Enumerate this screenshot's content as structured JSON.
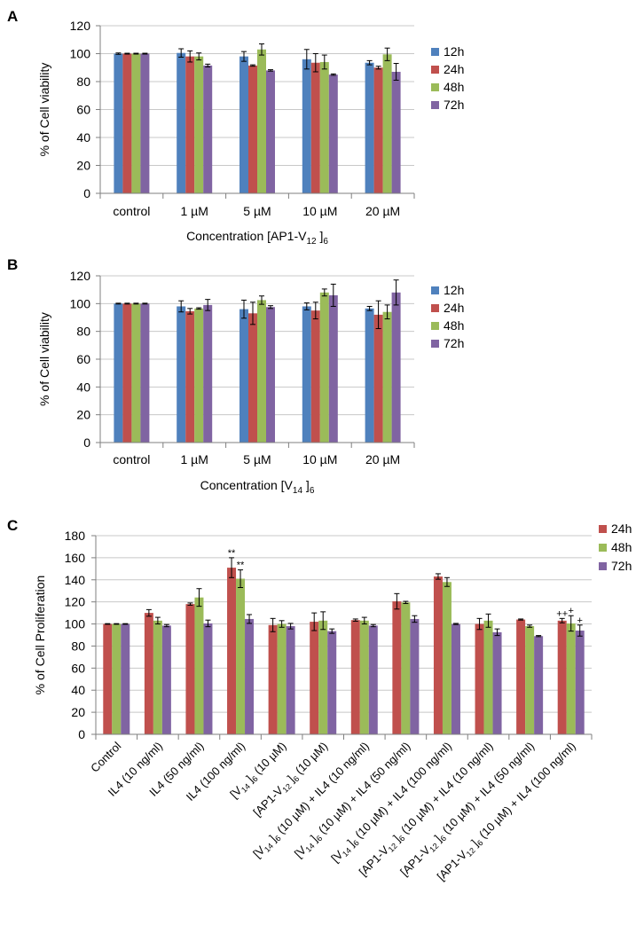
{
  "figure": {
    "panel_labels": [
      "A",
      "B",
      "C"
    ],
    "colors": {
      "12h": "#4F81BD",
      "24h": "#C0504D",
      "48h": "#9BBB59",
      "72h": "#8064A2",
      "error": "#000000",
      "axis": "#7f7f7f",
      "grid": "#c8c8c8"
    }
  },
  "chart_data": [
    {
      "type": "bar",
      "panel": "A",
      "ylabel": "% of Cell viability",
      "xlabel": "Concentration [AP1-V12 ]6",
      "xlabel_parts": {
        "pre": "Concentration [AP1-V",
        "sub1": "12",
        "mid": " ]",
        "sub2": "6"
      },
      "ylim": [
        0,
        120
      ],
      "yticks": [
        0,
        20,
        40,
        60,
        80,
        100,
        120
      ],
      "grid": true,
      "legend": "right",
      "categories": [
        "control",
        "1 µM",
        "5 µM",
        "10 µM",
        "20 µM"
      ],
      "series": [
        {
          "name": "12h",
          "values": [
            100,
            100.5,
            98,
            96,
            93.5
          ],
          "errors": [
            0.5,
            3,
            3.5,
            7,
            1.5
          ]
        },
        {
          "name": "24h",
          "values": [
            100,
            98,
            91.5,
            93.5,
            90
          ],
          "errors": [
            0.3,
            4,
            0.5,
            6.5,
            1
          ]
        },
        {
          "name": "48h",
          "values": [
            100,
            98,
            103,
            94,
            99.5
          ],
          "errors": [
            0.3,
            2.5,
            4,
            5,
            4.5
          ]
        },
        {
          "name": "72h",
          "values": [
            100,
            91.5,
            88,
            85,
            87
          ],
          "errors": [
            0.3,
            1,
            0.5,
            0.5,
            6
          ]
        }
      ]
    },
    {
      "type": "bar",
      "panel": "B",
      "ylabel": "% of Cell viability",
      "xlabel": "Concentration [V14 ]6",
      "xlabel_parts": {
        "pre": "Concentration [V",
        "sub1": "14",
        "mid": " ]",
        "sub2": "6"
      },
      "ylim": [
        0,
        120
      ],
      "yticks": [
        0,
        20,
        40,
        60,
        80,
        100,
        120
      ],
      "grid": true,
      "legend": "right",
      "categories": [
        "control",
        "1 µM",
        "5 µM",
        "10 µM",
        "20 µM"
      ],
      "series": [
        {
          "name": "12h",
          "values": [
            100,
            98,
            96,
            98,
            96.5
          ],
          "errors": [
            0.3,
            4,
            6.5,
            2.5,
            1.5
          ]
        },
        {
          "name": "24h",
          "values": [
            100,
            94.5,
            93,
            95,
            92
          ],
          "errors": [
            0.3,
            2,
            8,
            6,
            10
          ]
        },
        {
          "name": "48h",
          "values": [
            100,
            96.5,
            102.5,
            108,
            94
          ],
          "errors": [
            0.3,
            0.5,
            3,
            2.5,
            5
          ]
        },
        {
          "name": "72h",
          "values": [
            100,
            99,
            97.5,
            106,
            108
          ],
          "errors": [
            0.3,
            4,
            1,
            8,
            9
          ]
        }
      ]
    },
    {
      "type": "bar",
      "panel": "C",
      "ylabel": "% of Cell Proliferation",
      "ylim": [
        0,
        180
      ],
      "yticks": [
        0,
        20,
        40,
        60,
        80,
        100,
        120,
        140,
        160,
        180
      ],
      "grid": true,
      "legend": "top-right",
      "categories": [
        "Control",
        "IL4 (10 ng/ml)",
        "IL4 (50 ng/ml)",
        "IL4 (100 ng/ml)",
        "[V14 ]6 (10 µM)",
        "[AP1-V12 ]6 (10 µM)",
        "[V14 ]6 (10 µM) + IL4 (10 ng/ml)",
        "[V14 ]6 (10 µM) + IL4 (50 ng/ml)",
        "[V14 ]6 (10 µM) + IL4 (100 ng/ml)",
        "[AP1-V12 ]6 (10 µM) + IL4 (10 ng/ml)",
        "[AP1-V12 ]6 (10 µM) + IL4 (50 ng/ml)",
        "[AP1-V12 ]6 (10 µM) + IL4 (100 ng/ml)"
      ],
      "series": [
        {
          "name": "24h",
          "values": [
            100,
            110,
            118,
            151,
            99,
            102,
            103.5,
            120.5,
            143,
            100,
            104,
            103
          ],
          "errors": [
            0.3,
            3,
            1,
            9,
            6,
            8,
            1,
            7,
            2.5,
            5,
            0.5,
            2
          ]
        },
        {
          "name": "48h",
          "values": [
            100,
            103,
            124,
            141,
            100,
            103,
            103,
            119.5,
            138,
            103,
            98,
            100.5
          ],
          "errors": [
            0.3,
            3,
            8,
            8,
            3,
            8,
            3,
            1,
            4,
            6,
            1,
            7
          ]
        },
        {
          "name": "72h",
          "values": [
            100,
            98.5,
            100.5,
            104.5,
            98,
            93.5,
            98.5,
            104.5,
            100,
            92.5,
            89,
            94
          ],
          "errors": [
            0.3,
            1,
            3,
            4,
            2.5,
            2,
            1,
            3,
            0.5,
            3,
            0.5,
            5
          ]
        }
      ],
      "annotations": [
        {
          "category": "IL4 (100 ng/ml)",
          "series": "24h",
          "text": "**"
        },
        {
          "category": "IL4 (100 ng/ml)",
          "series": "48h",
          "text": "**"
        },
        {
          "category": "[AP1-V12 ]6 (10 µM) + IL4 (100 ng/ml)",
          "series": "24h",
          "text": "++"
        },
        {
          "category": "[AP1-V12 ]6 (10 µM) + IL4 (100 ng/ml)",
          "series": "48h",
          "text": "+"
        },
        {
          "category": "[AP1-V12 ]6 (10 µM) + IL4 (100 ng/ml)",
          "series": "72h",
          "text": "+"
        }
      ]
    }
  ]
}
